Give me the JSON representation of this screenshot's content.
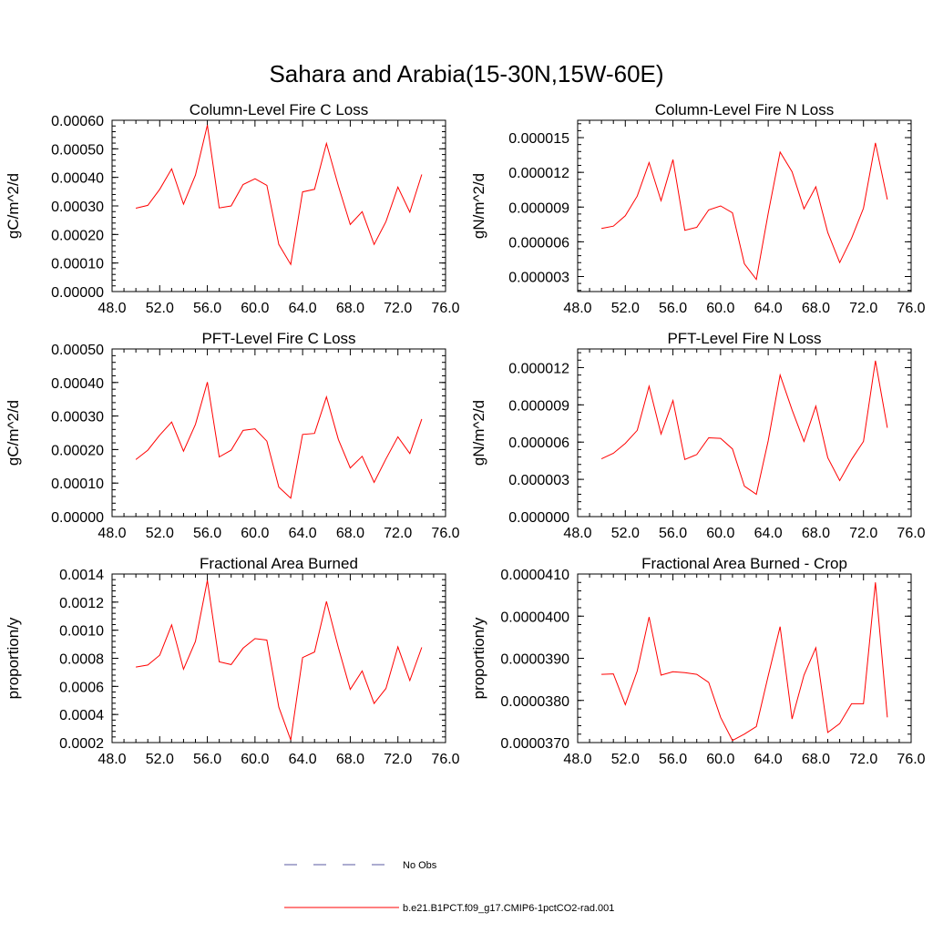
{
  "figure": {
    "title": "Sahara and Arabia(15-30N,15W-60E)"
  },
  "colors": {
    "model_line": "#ff0000",
    "obs_line": "#5a5aa0",
    "axis": "#000000",
    "background": "#ffffff"
  },
  "legend": {
    "obs_label": "No Obs",
    "model_label": "b.e21.B1PCT.f09_g17.CMIP6-1pctCO2-rad.001"
  },
  "chart_data": [
    {
      "type": "line",
      "title": "Column-Level Fire C Loss",
      "xlabel": "",
      "ylabel": "gC/m^2/d",
      "xlim": [
        48,
        76
      ],
      "ylim": [
        0.0,
        0.0006
      ],
      "x_tick_labels": [
        "48.0",
        "52.0",
        "56.0",
        "60.0",
        "64.0",
        "68.0",
        "72.0",
        "76.0"
      ],
      "y_tick_labels": [
        "0.00000",
        "0.00010",
        "0.00020",
        "0.00030",
        "0.00040",
        "0.00050",
        "0.00060"
      ],
      "y_major_step": 0.0001,
      "series": [
        {
          "name": "b.e21.B1PCT.f09_g17.CMIP6-1pctCO2-rad.001",
          "x": [
            50,
            51,
            52,
            53,
            54,
            55,
            56,
            57,
            58,
            59,
            60,
            61,
            62,
            63,
            64,
            65,
            66,
            67,
            68,
            69,
            70,
            71,
            72,
            73,
            74
          ],
          "y": [
            0.000292,
            0.000302,
            0.000358,
            0.00043,
            0.000306,
            0.000408,
            0.000583,
            0.000293,
            0.0003,
            0.000375,
            0.000395,
            0.000372,
            0.000165,
            9.5e-05,
            0.000349,
            0.000358,
            0.000519,
            0.00037,
            0.000235,
            0.00028,
            0.000165,
            0.000245,
            0.000366,
            0.000278,
            0.00041
          ]
        }
      ]
    },
    {
      "type": "line",
      "title": "Column-Level Fire N Loss",
      "xlabel": "",
      "ylabel": "gN/m^2/d",
      "xlim": [
        48,
        76
      ],
      "ylim": [
        1.7e-06,
        1.65e-05
      ],
      "x_tick_labels": [
        "48.0",
        "52.0",
        "56.0",
        "60.0",
        "64.0",
        "68.0",
        "72.0",
        "76.0"
      ],
      "y_tick_labels": [
        "0.000003",
        "0.000006",
        "0.000009",
        "0.000012",
        "0.000015"
      ],
      "y_major_step": 3e-06,
      "series": [
        {
          "name": "b.e21.B1PCT.f09_g17.CMIP6-1pctCO2-rad.001",
          "x": [
            50,
            51,
            52,
            53,
            54,
            55,
            56,
            57,
            58,
            59,
            60,
            61,
            62,
            63,
            64,
            65,
            66,
            67,
            68,
            69,
            70,
            71,
            72,
            73,
            74
          ],
          "y": [
            7.15e-06,
            7.35e-06,
            8.25e-06,
            9.95e-06,
            1.285e-05,
            9.55e-06,
            1.31e-05,
            7e-06,
            7.25e-06,
            8.75e-06,
            9.1e-06,
            8.5e-06,
            4.1e-06,
            2.75e-06,
            8.45e-06,
            1.375e-05,
            1.205e-05,
            8.85e-06,
            1.075e-05,
            6.8e-06,
            4.2e-06,
            6.3e-06,
            8.9e-06,
            1.455e-05,
            9.65e-06
          ]
        }
      ]
    },
    {
      "type": "line",
      "title": "PFT-Level Fire C Loss",
      "xlabel": "",
      "ylabel": "gC/m^2/d",
      "xlim": [
        48,
        76
      ],
      "ylim": [
        0.0,
        0.0005
      ],
      "x_tick_labels": [
        "48.0",
        "52.0",
        "56.0",
        "60.0",
        "64.0",
        "68.0",
        "72.0",
        "76.0"
      ],
      "y_tick_labels": [
        "0.00000",
        "0.00010",
        "0.00020",
        "0.00030",
        "0.00040",
        "0.00050"
      ],
      "y_major_step": 0.0001,
      "series": [
        {
          "name": "b.e21.B1PCT.f09_g17.CMIP6-1pctCO2-rad.001",
          "x": [
            50,
            51,
            52,
            53,
            54,
            55,
            56,
            57,
            58,
            59,
            60,
            61,
            62,
            63,
            64,
            65,
            66,
            67,
            68,
            69,
            70,
            71,
            72,
            73,
            74
          ],
          "y": [
            0.00017,
            0.000198,
            0.000243,
            0.000282,
            0.000195,
            0.000275,
            0.000401,
            0.000178,
            0.000198,
            0.000257,
            0.000262,
            0.000225,
            8.8e-05,
            5.5e-05,
            0.000245,
            0.000248,
            0.000357,
            0.00023,
            0.000145,
            0.00018,
            0.000102,
            0.000172,
            0.000238,
            0.000188,
            0.000291
          ]
        }
      ]
    },
    {
      "type": "line",
      "title": "PFT-Level Fire N Loss",
      "xlabel": "",
      "ylabel": "gN/m^2/d",
      "xlim": [
        48,
        76
      ],
      "ylim": [
        0.0,
        1.35e-05
      ],
      "x_tick_labels": [
        "48.0",
        "52.0",
        "56.0",
        "60.0",
        "64.0",
        "68.0",
        "72.0",
        "76.0"
      ],
      "y_tick_labels": [
        "0.000000",
        "0.000003",
        "0.000006",
        "0.000009",
        "0.000012"
      ],
      "y_major_step": 3e-06,
      "series": [
        {
          "name": "b.e21.B1PCT.f09_g17.CMIP6-1pctCO2-rad.001",
          "x": [
            50,
            51,
            52,
            53,
            54,
            55,
            56,
            57,
            58,
            59,
            60,
            61,
            62,
            63,
            64,
            65,
            66,
            67,
            68,
            69,
            70,
            71,
            72,
            73,
            74
          ],
          "y": [
            4.65e-06,
            5.1e-06,
            5.9e-06,
            6.95e-06,
            1.05e-05,
            6.65e-06,
            9.35e-06,
            4.6e-06,
            5e-06,
            6.35e-06,
            6.3e-06,
            5.45e-06,
            2.45e-06,
            1.8e-06,
            6.1e-06,
            1.14e-05,
            8.6e-06,
            6.05e-06,
            8.9e-06,
            4.75e-06,
            2.9e-06,
            4.6e-06,
            6.05e-06,
            1.255e-05,
            7.15e-06
          ]
        }
      ]
    },
    {
      "type": "line",
      "title": "Fractional Area Burned",
      "xlabel": "",
      "ylabel": "proportion/y",
      "xlim": [
        48,
        76
      ],
      "ylim": [
        0.0002,
        0.0014
      ],
      "x_tick_labels": [
        "48.0",
        "52.0",
        "56.0",
        "60.0",
        "64.0",
        "68.0",
        "72.0",
        "76.0"
      ],
      "y_tick_labels": [
        "0.0002",
        "0.0004",
        "0.0006",
        "0.0008",
        "0.0010",
        "0.0012",
        "0.0014"
      ],
      "y_major_step": 0.0002,
      "series": [
        {
          "name": "b.e21.B1PCT.f09_g17.CMIP6-1pctCO2-rad.001",
          "x": [
            50,
            51,
            52,
            53,
            54,
            55,
            56,
            57,
            58,
            59,
            60,
            61,
            62,
            63,
            64,
            65,
            66,
            67,
            68,
            69,
            70,
            71,
            72,
            73,
            74
          ],
          "y": [
            0.000738,
            0.000752,
            0.000822,
            0.001038,
            0.000722,
            0.00092,
            0.001355,
            0.000775,
            0.000755,
            0.000872,
            0.00094,
            0.00093,
            0.000452,
            0.000218,
            0.000805,
            0.000845,
            0.001205,
            0.000875,
            0.000578,
            0.00071,
            0.000478,
            0.000585,
            0.000882,
            0.000642,
            0.000878
          ]
        }
      ]
    },
    {
      "type": "line",
      "title": "Fractional Area Burned - Crop",
      "xlabel": "",
      "ylabel": "proportion/y",
      "xlim": [
        48,
        76
      ],
      "ylim": [
        3.7e-05,
        4.1e-05
      ],
      "x_tick_labels": [
        "48.0",
        "52.0",
        "56.0",
        "60.0",
        "64.0",
        "68.0",
        "72.0",
        "76.0"
      ],
      "y_tick_labels": [
        "0.0000370",
        "0.0000380",
        "0.0000390",
        "0.0000400",
        "0.0000410"
      ],
      "y_major_step": 1e-06,
      "series": [
        {
          "name": "b.e21.B1PCT.f09_g17.CMIP6-1pctCO2-rad.001",
          "x": [
            50,
            51,
            52,
            53,
            54,
            55,
            56,
            57,
            58,
            59,
            60,
            61,
            62,
            63,
            64,
            65,
            66,
            67,
            68,
            69,
            70,
            71,
            72,
            73,
            74
          ],
          "y": [
            3.862e-05,
            3.863e-05,
            3.79e-05,
            3.87e-05,
            3.998e-05,
            3.86e-05,
            3.868e-05,
            3.866e-05,
            3.862e-05,
            3.843e-05,
            3.76e-05,
            3.705e-05,
            3.72e-05,
            3.738e-05,
            3.858e-05,
            3.975e-05,
            3.756e-05,
            3.86e-05,
            3.925e-05,
            3.724e-05,
            3.745e-05,
            3.792e-05,
            3.792e-05,
            4.08e-05,
            3.76e-05
          ]
        }
      ]
    }
  ]
}
